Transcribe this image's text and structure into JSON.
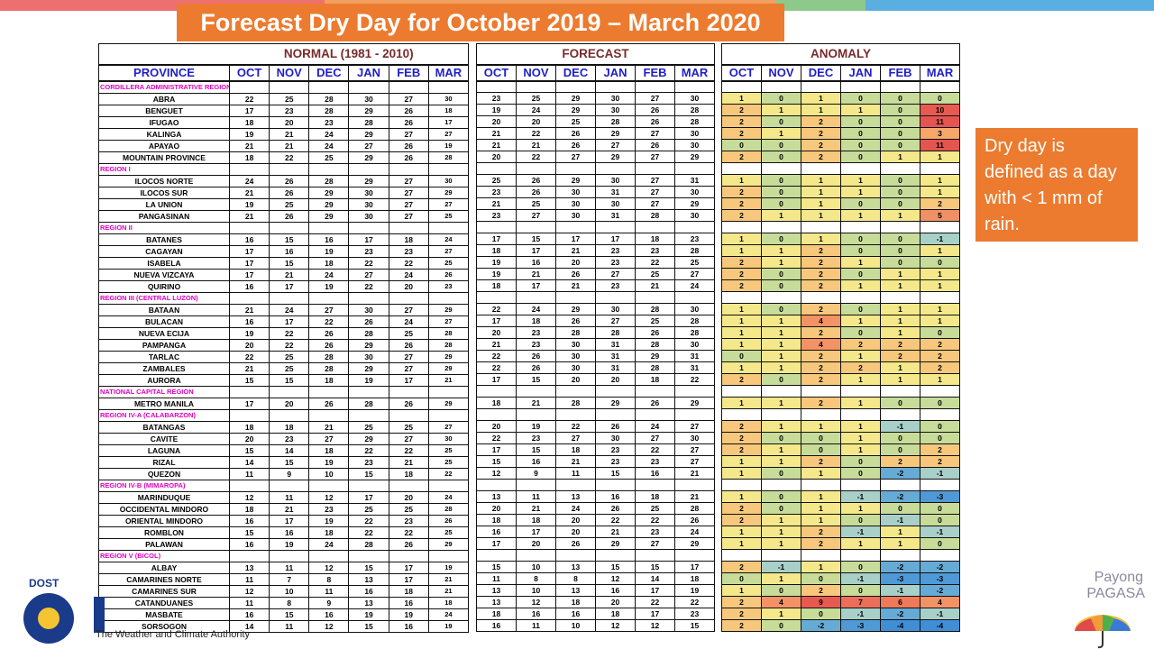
{
  "title": "Forecast Dry Day  for October 2019 – March 2020",
  "note": "Dry day is defined as a day with < 1 mm of rain.",
  "headers": {
    "normal": "NORMAL (1981 - 2010)",
    "forecast": "FORECAST",
    "anomaly": "ANOMALY",
    "province": "PROVINCE",
    "months": [
      "OCT",
      "NOV",
      "DEC",
      "JAN",
      "FEB",
      "MAR"
    ]
  },
  "logos": {
    "dost": "DOST",
    "dost_tagline": "The Weather and Climate Authority",
    "payong_line1": "Payong",
    "payong_line2": "PAGASA"
  },
  "anomaly_colors": {
    "-4": "#3f8ed6",
    "-3": "#4f9ad6",
    "-2": "#66aad6",
    "-1": "#a8cfc8",
    "0": "#c8dc9a",
    "1": "#f4e88a",
    "2": "#f7c87c",
    "3": "#f6a86a",
    "4": "#f39264",
    "5": "#f09064",
    "6": "#ee7a5a",
    "7": "#ec6e58",
    "9": "#e85a50",
    "10": "#e85a50",
    "11": "#e45450"
  },
  "rows": [
    {
      "type": "region",
      "name": "CORDILLERA ADMINISTRATIVE REGION (CAR)"
    },
    {
      "type": "prov",
      "name": "ABRA",
      "normal": [
        "22",
        "25",
        "28",
        "30",
        "27",
        "30"
      ],
      "forecast": [
        "23",
        "25",
        "29",
        "30",
        "27",
        "30"
      ],
      "anomaly": [
        "1",
        "0",
        "1",
        "0",
        "0",
        "0"
      ]
    },
    {
      "type": "prov",
      "name": "BENGUET",
      "normal": [
        "17",
        "23",
        "28",
        "29",
        "26",
        "18"
      ],
      "forecast": [
        "19",
        "24",
        "29",
        "30",
        "26",
        "28"
      ],
      "anomaly": [
        "2",
        "1",
        "1",
        "1",
        "0",
        "10"
      ]
    },
    {
      "type": "prov",
      "name": "IFUGAO",
      "normal": [
        "18",
        "20",
        "23",
        "28",
        "26",
        "17"
      ],
      "forecast": [
        "20",
        "20",
        "25",
        "28",
        "26",
        "28"
      ],
      "anomaly": [
        "2",
        "0",
        "2",
        "0",
        "0",
        "11"
      ]
    },
    {
      "type": "prov",
      "name": "KALINGA",
      "normal": [
        "19",
        "21",
        "24",
        "29",
        "27",
        "27"
      ],
      "forecast": [
        "21",
        "22",
        "26",
        "29",
        "27",
        "30"
      ],
      "anomaly": [
        "2",
        "1",
        "2",
        "0",
        "0",
        "3"
      ]
    },
    {
      "type": "prov",
      "name": "APAYAO",
      "normal": [
        "21",
        "21",
        "24",
        "27",
        "26",
        "19"
      ],
      "forecast": [
        "21",
        "21",
        "26",
        "27",
        "26",
        "30"
      ],
      "anomaly": [
        "0",
        "0",
        "2",
        "0",
        "0",
        "11"
      ]
    },
    {
      "type": "prov",
      "name": "MOUNTAIN PROVINCE",
      "normal": [
        "18",
        "22",
        "25",
        "29",
        "26",
        "28"
      ],
      "forecast": [
        "20",
        "22",
        "27",
        "29",
        "27",
        "29"
      ],
      "anomaly": [
        "2",
        "0",
        "2",
        "0",
        "1",
        "1"
      ]
    },
    {
      "type": "region",
      "name": "REGION I"
    },
    {
      "type": "prov",
      "name": "ILOCOS NORTE",
      "normal": [
        "24",
        "26",
        "28",
        "29",
        "27",
        "30"
      ],
      "forecast": [
        "25",
        "26",
        "29",
        "30",
        "27",
        "31"
      ],
      "anomaly": [
        "1",
        "0",
        "1",
        "1",
        "0",
        "1"
      ]
    },
    {
      "type": "prov",
      "name": "ILOCOS SUR",
      "normal": [
        "21",
        "26",
        "29",
        "30",
        "27",
        "29"
      ],
      "forecast": [
        "23",
        "26",
        "30",
        "31",
        "27",
        "30"
      ],
      "anomaly": [
        "2",
        "0",
        "1",
        "1",
        "0",
        "1"
      ]
    },
    {
      "type": "prov",
      "name": "LA UNION",
      "normal": [
        "19",
        "25",
        "29",
        "30",
        "27",
        "27"
      ],
      "forecast": [
        "21",
        "25",
        "30",
        "30",
        "27",
        "29"
      ],
      "anomaly": [
        "2",
        "0",
        "1",
        "0",
        "0",
        "2"
      ]
    },
    {
      "type": "prov",
      "name": "PANGASINAN",
      "normal": [
        "21",
        "26",
        "29",
        "30",
        "27",
        "25"
      ],
      "forecast": [
        "23",
        "27",
        "30",
        "31",
        "28",
        "30"
      ],
      "anomaly": [
        "2",
        "1",
        "1",
        "1",
        "1",
        "5"
      ]
    },
    {
      "type": "region",
      "name": "REGION II"
    },
    {
      "type": "prov",
      "name": "BATANES",
      "normal": [
        "16",
        "15",
        "16",
        "17",
        "18",
        "24"
      ],
      "forecast": [
        "17",
        "15",
        "17",
        "17",
        "18",
        "23"
      ],
      "anomaly": [
        "1",
        "0",
        "1",
        "0",
        "0",
        "-1"
      ]
    },
    {
      "type": "prov",
      "name": "CAGAYAN",
      "normal": [
        "17",
        "16",
        "19",
        "23",
        "23",
        "27"
      ],
      "forecast": [
        "18",
        "17",
        "21",
        "23",
        "23",
        "28"
      ],
      "anomaly": [
        "1",
        "1",
        "2",
        "0",
        "0",
        "1"
      ]
    },
    {
      "type": "prov",
      "name": "ISABELA",
      "normal": [
        "17",
        "15",
        "18",
        "22",
        "22",
        "25"
      ],
      "forecast": [
        "19",
        "16",
        "20",
        "23",
        "22",
        "25"
      ],
      "anomaly": [
        "2",
        "1",
        "2",
        "1",
        "0",
        "0"
      ]
    },
    {
      "type": "prov",
      "name": "NUEVA VIZCAYA",
      "normal": [
        "17",
        "21",
        "24",
        "27",
        "24",
        "26"
      ],
      "forecast": [
        "19",
        "21",
        "26",
        "27",
        "25",
        "27"
      ],
      "anomaly": [
        "2",
        "0",
        "2",
        "0",
        "1",
        "1"
      ]
    },
    {
      "type": "prov",
      "name": "QUIRINO",
      "normal": [
        "16",
        "17",
        "19",
        "22",
        "20",
        "23"
      ],
      "forecast": [
        "18",
        "17",
        "21",
        "23",
        "21",
        "24"
      ],
      "anomaly": [
        "2",
        "0",
        "2",
        "1",
        "1",
        "1"
      ]
    },
    {
      "type": "region",
      "name": "REGION III (CENTRAL LUZON)"
    },
    {
      "type": "prov",
      "name": "BATAAN",
      "normal": [
        "21",
        "24",
        "27",
        "30",
        "27",
        "29"
      ],
      "forecast": [
        "22",
        "24",
        "29",
        "30",
        "28",
        "30"
      ],
      "anomaly": [
        "1",
        "0",
        "2",
        "0",
        "1",
        "1"
      ]
    },
    {
      "type": "prov",
      "name": "BULACAN",
      "normal": [
        "16",
        "17",
        "22",
        "26",
        "24",
        "27"
      ],
      "forecast": [
        "17",
        "18",
        "26",
        "27",
        "25",
        "28"
      ],
      "anomaly": [
        "1",
        "1",
        "4",
        "1",
        "1",
        "1"
      ]
    },
    {
      "type": "prov",
      "name": "NUEVA ECIJA",
      "normal": [
        "19",
        "22",
        "26",
        "28",
        "25",
        "28"
      ],
      "forecast": [
        "20",
        "23",
        "28",
        "28",
        "26",
        "28"
      ],
      "anomaly": [
        "1",
        "1",
        "2",
        "0",
        "1",
        "0"
      ]
    },
    {
      "type": "prov",
      "name": "PAMPANGA",
      "normal": [
        "20",
        "22",
        "26",
        "29",
        "26",
        "28"
      ],
      "forecast": [
        "21",
        "23",
        "30",
        "31",
        "28",
        "30"
      ],
      "anomaly": [
        "1",
        "1",
        "4",
        "2",
        "2",
        "2"
      ]
    },
    {
      "type": "prov",
      "name": "TARLAC",
      "normal": [
        "22",
        "25",
        "28",
        "30",
        "27",
        "29"
      ],
      "forecast": [
        "22",
        "26",
        "30",
        "31",
        "29",
        "31"
      ],
      "anomaly": [
        "0",
        "1",
        "2",
        "1",
        "2",
        "2"
      ]
    },
    {
      "type": "prov",
      "name": "ZAMBALES",
      "normal": [
        "21",
        "25",
        "28",
        "29",
        "27",
        "29"
      ],
      "forecast": [
        "22",
        "26",
        "30",
        "31",
        "28",
        "31"
      ],
      "anomaly": [
        "1",
        "1",
        "2",
        "2",
        "1",
        "2"
      ]
    },
    {
      "type": "prov",
      "name": "AURORA",
      "normal": [
        "15",
        "15",
        "18",
        "19",
        "17",
        "21"
      ],
      "forecast": [
        "17",
        "15",
        "20",
        "20",
        "18",
        "22"
      ],
      "anomaly": [
        "2",
        "0",
        "2",
        "1",
        "1",
        "1"
      ]
    },
    {
      "type": "region",
      "name": "NATIONAL CAPITAL REGION"
    },
    {
      "type": "prov",
      "name": "METRO MANILA",
      "normal": [
        "17",
        "20",
        "26",
        "28",
        "26",
        "29"
      ],
      "forecast": [
        "18",
        "21",
        "28",
        "29",
        "26",
        "29"
      ],
      "anomaly": [
        "1",
        "1",
        "2",
        "1",
        "0",
        "0"
      ]
    },
    {
      "type": "region",
      "name": "REGION IV-A (CALABARZON)"
    },
    {
      "type": "prov",
      "name": "BATANGAS",
      "normal": [
        "18",
        "18",
        "21",
        "25",
        "25",
        "27"
      ],
      "forecast": [
        "20",
        "19",
        "22",
        "26",
        "24",
        "27"
      ],
      "anomaly": [
        "2",
        "1",
        "1",
        "1",
        "-1",
        "0"
      ]
    },
    {
      "type": "prov",
      "name": "CAVITE",
      "normal": [
        "20",
        "23",
        "27",
        "29",
        "27",
        "30"
      ],
      "forecast": [
        "22",
        "23",
        "27",
        "30",
        "27",
        "30"
      ],
      "anomaly": [
        "2",
        "0",
        "0",
        "1",
        "0",
        "0"
      ]
    },
    {
      "type": "prov",
      "name": "LAGUNA",
      "normal": [
        "15",
        "14",
        "18",
        "22",
        "22",
        "25"
      ],
      "forecast": [
        "17",
        "15",
        "18",
        "23",
        "22",
        "27"
      ],
      "anomaly": [
        "2",
        "1",
        "0",
        "1",
        "0",
        "2"
      ]
    },
    {
      "type": "prov",
      "name": "RIZAL",
      "normal": [
        "14",
        "15",
        "19",
        "23",
        "21",
        "25"
      ],
      "forecast": [
        "15",
        "16",
        "21",
        "23",
        "23",
        "27"
      ],
      "anomaly": [
        "1",
        "1",
        "2",
        "0",
        "2",
        "2"
      ]
    },
    {
      "type": "prov",
      "name": "QUEZON",
      "normal": [
        "11",
        "9",
        "10",
        "15",
        "18",
        "22"
      ],
      "forecast": [
        "12",
        "9",
        "11",
        "15",
        "16",
        "21"
      ],
      "anomaly": [
        "1",
        "0",
        "1",
        "0",
        "-2",
        "-1"
      ]
    },
    {
      "type": "region",
      "name": "REGION IV-B (MIMAROPA)"
    },
    {
      "type": "prov",
      "name": "MARINDUQUE",
      "normal": [
        "12",
        "11",
        "12",
        "17",
        "20",
        "24"
      ],
      "forecast": [
        "13",
        "11",
        "13",
        "16",
        "18",
        "21"
      ],
      "anomaly": [
        "1",
        "0",
        "1",
        "-1",
        "-2",
        "-3"
      ]
    },
    {
      "type": "prov",
      "name": "OCCIDENTAL MINDORO",
      "normal": [
        "18",
        "21",
        "23",
        "25",
        "25",
        "28"
      ],
      "forecast": [
        "20",
        "21",
        "24",
        "26",
        "25",
        "28"
      ],
      "anomaly": [
        "2",
        "0",
        "1",
        "1",
        "0",
        "0"
      ]
    },
    {
      "type": "prov",
      "name": "ORIENTAL MINDORO",
      "normal": [
        "16",
        "17",
        "19",
        "22",
        "23",
        "26"
      ],
      "forecast": [
        "18",
        "18",
        "20",
        "22",
        "22",
        "26"
      ],
      "anomaly": [
        "2",
        "1",
        "1",
        "0",
        "-1",
        "0"
      ]
    },
    {
      "type": "prov",
      "name": "ROMBLON",
      "normal": [
        "15",
        "16",
        "18",
        "22",
        "22",
        "25"
      ],
      "forecast": [
        "16",
        "17",
        "20",
        "21",
        "23",
        "24"
      ],
      "anomaly": [
        "1",
        "1",
        "2",
        "-1",
        "1",
        "-1"
      ]
    },
    {
      "type": "prov",
      "name": "PALAWAN",
      "normal": [
        "16",
        "19",
        "24",
        "28",
        "26",
        "29"
      ],
      "forecast": [
        "17",
        "20",
        "26",
        "29",
        "27",
        "29"
      ],
      "anomaly": [
        "1",
        "1",
        "2",
        "1",
        "1",
        "0"
      ]
    },
    {
      "type": "region",
      "name": "REGION V (BICOL)"
    },
    {
      "type": "prov",
      "name": "ALBAY",
      "normal": [
        "13",
        "11",
        "12",
        "15",
        "17",
        "19"
      ],
      "forecast": [
        "15",
        "10",
        "13",
        "15",
        "15",
        "17"
      ],
      "anomaly": [
        "2",
        "-1",
        "1",
        "0",
        "-2",
        "-2"
      ]
    },
    {
      "type": "prov",
      "name": "CAMARINES NORTE",
      "normal": [
        "11",
        "7",
        "8",
        "13",
        "17",
        "21"
      ],
      "forecast": [
        "11",
        "8",
        "8",
        "12",
        "14",
        "18"
      ],
      "anomaly": [
        "0",
        "1",
        "0",
        "-1",
        "-3",
        "-3"
      ]
    },
    {
      "type": "prov",
      "name": "CAMARINES SUR",
      "normal": [
        "12",
        "10",
        "11",
        "16",
        "18",
        "21"
      ],
      "forecast": [
        "13",
        "10",
        "13",
        "16",
        "17",
        "19"
      ],
      "anomaly": [
        "1",
        "0",
        "2",
        "0",
        "-1",
        "-2"
      ]
    },
    {
      "type": "prov",
      "name": "CATANDUANES",
      "normal": [
        "11",
        "8",
        "9",
        "13",
        "16",
        "18"
      ],
      "forecast": [
        "13",
        "12",
        "18",
        "20",
        "22",
        "22"
      ],
      "anomaly": [
        "2",
        "4",
        "9",
        "7",
        "6",
        "4"
      ]
    },
    {
      "type": "prov",
      "name": "MASBATE",
      "normal": [
        "16",
        "15",
        "16",
        "19",
        "19",
        "24"
      ],
      "forecast": [
        "18",
        "16",
        "16",
        "18",
        "17",
        "23"
      ],
      "anomaly": [
        "2",
        "1",
        "0",
        "-1",
        "-2",
        "-1"
      ]
    },
    {
      "type": "prov",
      "name": "SORSOGON",
      "normal": [
        "14",
        "11",
        "12",
        "15",
        "16",
        "19"
      ],
      "forecast": [
        "16",
        "11",
        "10",
        "12",
        "12",
        "15"
      ],
      "anomaly": [
        "2",
        "0",
        "-2",
        "-3",
        "-4",
        "-4"
      ]
    }
  ]
}
